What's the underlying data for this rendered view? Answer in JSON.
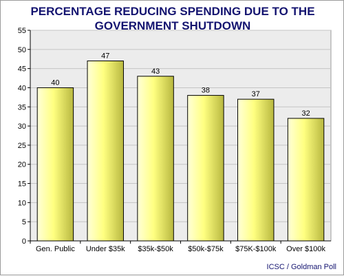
{
  "chart_data": {
    "type": "bar",
    "title_lines": [
      "PERCENTAGE REDUCING SPENDING DUE TO THE",
      "GOVERNMENT SHUTDOWN"
    ],
    "categories": [
      "Gen. Public",
      "Under $35k",
      "$35k-$50k",
      "$50k-$75k",
      "$75K-$100k",
      "Over $100k"
    ],
    "values": [
      40,
      47,
      43,
      38,
      37,
      32
    ],
    "data_labels": [
      "40",
      "47",
      "43",
      "38",
      "37",
      "32"
    ],
    "ylim": [
      0,
      55
    ],
    "y_ticks": [
      0,
      5,
      10,
      15,
      20,
      25,
      30,
      35,
      40,
      45,
      50,
      55
    ],
    "xlabel": "",
    "ylabel": "",
    "grid": true,
    "legend": "none",
    "source_note": "ICSC / Goldman Poll",
    "colors": {
      "bar_light": "#ffffd8",
      "bar_mid": "#ffff80",
      "bar_dark": "#b8b840",
      "bar_stroke": "#000000",
      "plot_bg": "#ececec",
      "grid": "#c4c4c4",
      "title": "#141470",
      "axis_text": "#000000"
    }
  }
}
